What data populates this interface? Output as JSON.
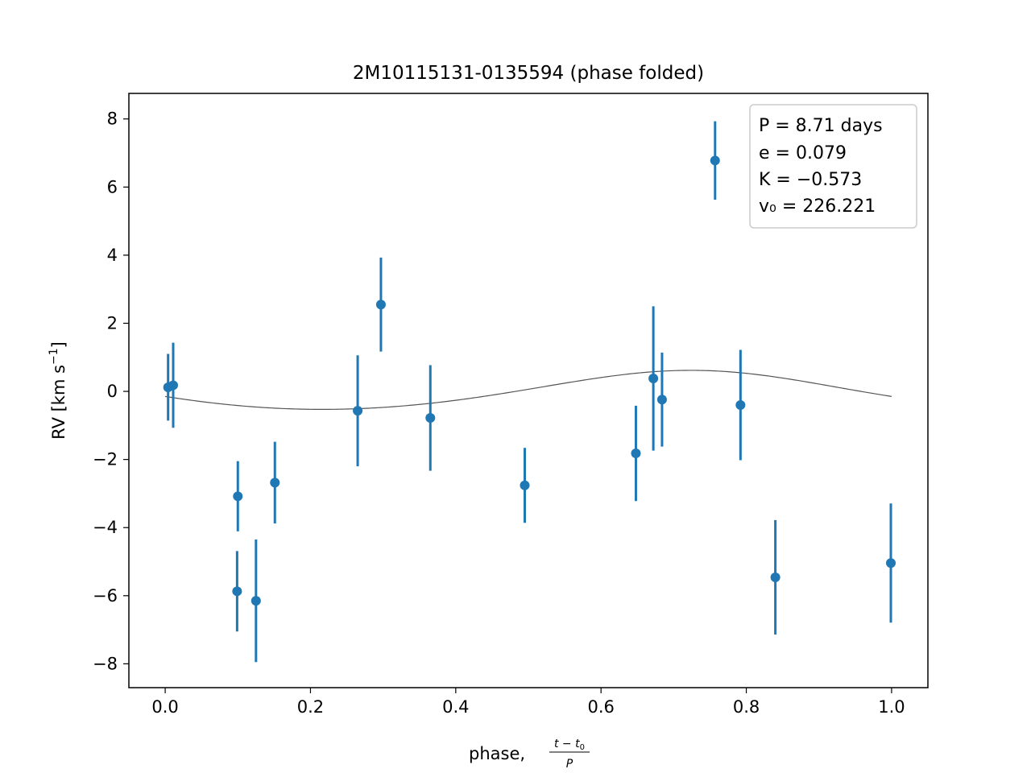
{
  "chart_data": {
    "type": "scatter",
    "title": "2M10115131-0135594 (phase folded)",
    "xlabel": "phase, (t - t0) / P",
    "ylabel": "RV [km s⁻¹]",
    "xlim": [
      -0.05,
      1.05
    ],
    "ylim": [
      -8.7,
      8.75
    ],
    "xticks": [
      0.0,
      0.2,
      0.4,
      0.6,
      0.8,
      1.0
    ],
    "xtick_labels": [
      "0.0",
      "0.2",
      "0.4",
      "0.6",
      "0.8",
      "1.0"
    ],
    "yticks": [
      8,
      6,
      4,
      2,
      0,
      -2,
      -4,
      -6,
      -8
    ],
    "ytick_labels": [
      "8",
      "6",
      "4",
      "2",
      "0",
      "−2",
      "−4",
      "−6",
      "−8"
    ],
    "grid": false,
    "legend_location": "top-right",
    "annotation": {
      "P_label": "P = 8.71 days",
      "e_label": "e = 0.079",
      "K_label": "K = −0.573",
      "v0_label": "v₀ = 226.221"
    },
    "model": {
      "P_days": 8.71,
      "e": 0.079,
      "K": -0.573,
      "v0": 226.221,
      "color": "#555555"
    },
    "point_color": "#1f77b4",
    "points": [
      {
        "x": 0.004,
        "y": 0.12,
        "err": 0.98
      },
      {
        "x": 0.011,
        "y": 0.18,
        "err": 1.25
      },
      {
        "x": 0.099,
        "y": -5.87,
        "err": 1.18
      },
      {
        "x": 0.1,
        "y": -3.08,
        "err": 1.03
      },
      {
        "x": 0.125,
        "y": -6.15,
        "err": 1.8
      },
      {
        "x": 0.151,
        "y": -2.68,
        "err": 1.2
      },
      {
        "x": 0.265,
        "y": -0.57,
        "err": 1.63
      },
      {
        "x": 0.297,
        "y": 2.55,
        "err": 1.38
      },
      {
        "x": 0.365,
        "y": -0.78,
        "err": 1.55
      },
      {
        "x": 0.495,
        "y": -2.76,
        "err": 1.1
      },
      {
        "x": 0.648,
        "y": -1.82,
        "err": 1.4
      },
      {
        "x": 0.672,
        "y": 0.38,
        "err": 2.12
      },
      {
        "x": 0.684,
        "y": -0.24,
        "err": 1.38
      },
      {
        "x": 0.757,
        "y": 6.78,
        "err": 1.15
      },
      {
        "x": 0.792,
        "y": -0.4,
        "err": 1.62
      },
      {
        "x": 0.84,
        "y": -5.46,
        "err": 1.68
      },
      {
        "x": 0.999,
        "y": -5.04,
        "err": 1.75
      }
    ]
  }
}
